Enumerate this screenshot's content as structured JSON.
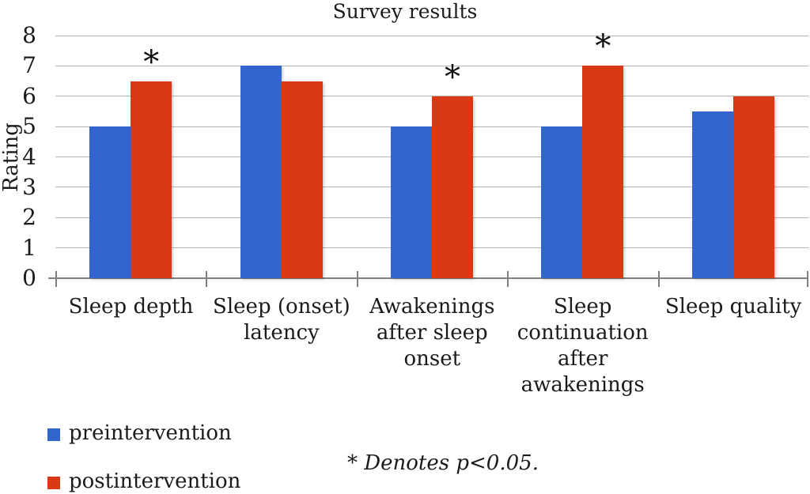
{
  "chart_data": {
    "type": "bar",
    "title": "Survey results",
    "xlabel": "",
    "ylabel": "Rating",
    "ylim": [
      0,
      8
    ],
    "ytick_interval": 1,
    "grid": true,
    "legend_position": "bottom-left",
    "categories": [
      "Sleep depth",
      "Sleep (onset) latency",
      "Awakenings after sleep onset",
      "Sleep continuation after awakenings",
      "Sleep quality"
    ],
    "category_label_lines": [
      [
        "Sleep depth"
      ],
      [
        "Sleep (onset)",
        "latency"
      ],
      [
        "Awakenings",
        "after sleep",
        "onset"
      ],
      [
        "Sleep",
        "continuation",
        "after",
        "awakenings"
      ],
      [
        "Sleep quality"
      ]
    ],
    "series": [
      {
        "name": "preintervention",
        "color": "#3366cc",
        "values": [
          5,
          7,
          5,
          5,
          5.5
        ]
      },
      {
        "name": "postintervention",
        "color": "#da3913",
        "values": [
          6.5,
          6.5,
          6,
          7,
          6
        ]
      }
    ],
    "significance": {
      "symbol": "*",
      "on_series": "postintervention",
      "marked": [
        true,
        false,
        true,
        true,
        false
      ]
    },
    "annotation": "* Denotes p<0.05."
  },
  "colors": {
    "gridline": "#b3b3b3",
    "axis": "#808080",
    "text": "#1b1b1b"
  }
}
